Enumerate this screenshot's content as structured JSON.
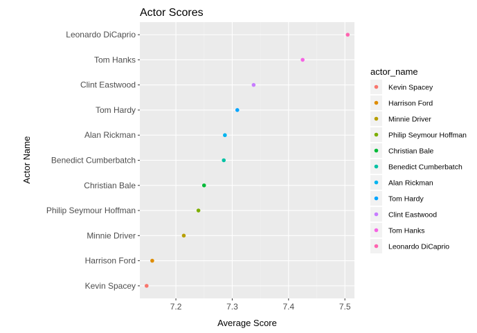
{
  "chart_data": {
    "type": "scatter",
    "title": "Actor Scores",
    "xlabel": "Average Score",
    "ylabel": "Actor Name",
    "xlim": [
      7.136,
      7.517
    ],
    "x_ticks": [
      "7.2",
      "7.3",
      "7.4",
      "7.5"
    ],
    "x_tick_values": [
      7.2,
      7.3,
      7.4,
      7.5
    ],
    "grid": true,
    "background": "#ebebeb",
    "legend": {
      "title": "actor_name",
      "position": "right"
    },
    "points": [
      {
        "name": "Kevin Spacey",
        "value": 7.148,
        "color": "#F8766D"
      },
      {
        "name": "Harrison Ford",
        "value": 7.158,
        "color": "#DE8C00"
      },
      {
        "name": "Minnie Driver",
        "value": 7.214,
        "color": "#B79F00"
      },
      {
        "name": "Philip Seymour Hoffman",
        "value": 7.24,
        "color": "#7CAE00"
      },
      {
        "name": "Christian Bale",
        "value": 7.25,
        "color": "#00BA38"
      },
      {
        "name": "Benedict Cumberbatch",
        "value": 7.285,
        "color": "#00C1A3"
      },
      {
        "name": "Alan Rickman",
        "value": 7.287,
        "color": "#00B4EF"
      },
      {
        "name": "Tom Hardy",
        "value": 7.309,
        "color": "#00A5FF"
      },
      {
        "name": "Clint Eastwood",
        "value": 7.338,
        "color": "#C77CFF"
      },
      {
        "name": "Tom Hanks",
        "value": 7.425,
        "color": "#F564E3"
      },
      {
        "name": "Leonardo DiCaprio",
        "value": 7.505,
        "color": "#FF64B0"
      }
    ]
  }
}
